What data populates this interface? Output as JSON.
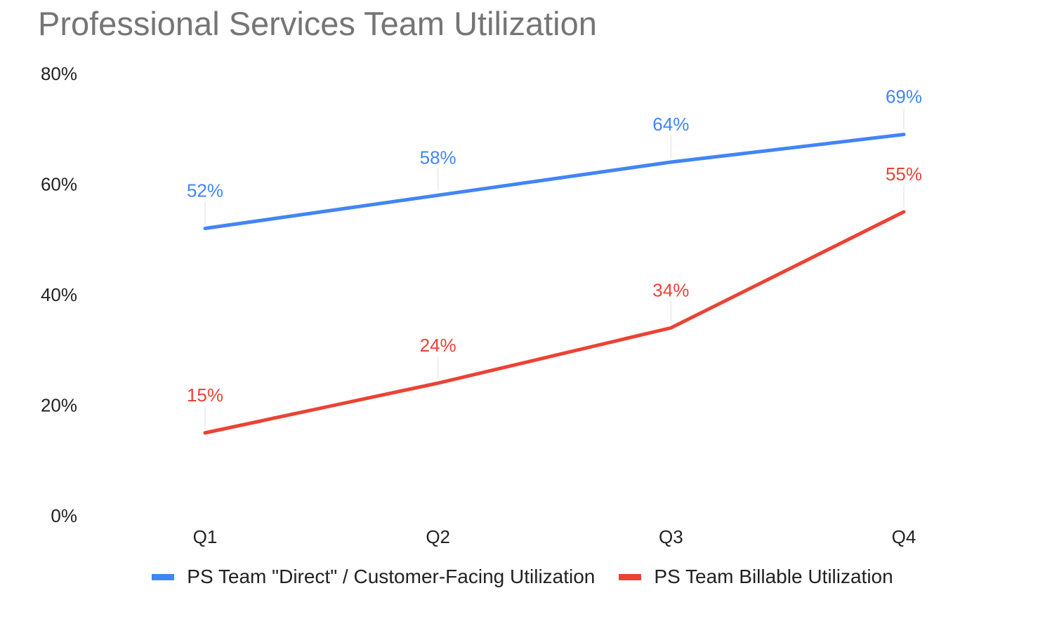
{
  "colors": {
    "series1": "#4285F4",
    "series2": "#EA4335",
    "title": "#757575"
  },
  "chart_data": {
    "type": "line",
    "title": "Professional Services Team Utilization",
    "categories": [
      "Q1",
      "Q2",
      "Q3",
      "Q4"
    ],
    "y_ticks": [
      "0%",
      "20%",
      "40%",
      "60%",
      "80%"
    ],
    "ylim": [
      0,
      80
    ],
    "xlabel": "",
    "ylabel": "",
    "grid": false,
    "legend_position": "bottom",
    "series": [
      {
        "name": "PS Team \"Direct\" / Customer-Facing Utilization",
        "values": [
          52,
          58,
          64,
          69
        ],
        "labels": [
          "52%",
          "58%",
          "64%",
          "69%"
        ]
      },
      {
        "name": "PS Team Billable Utilization",
        "values": [
          15,
          24,
          34,
          55
        ],
        "labels": [
          "15%",
          "24%",
          "34%",
          "55%"
        ]
      }
    ]
  }
}
